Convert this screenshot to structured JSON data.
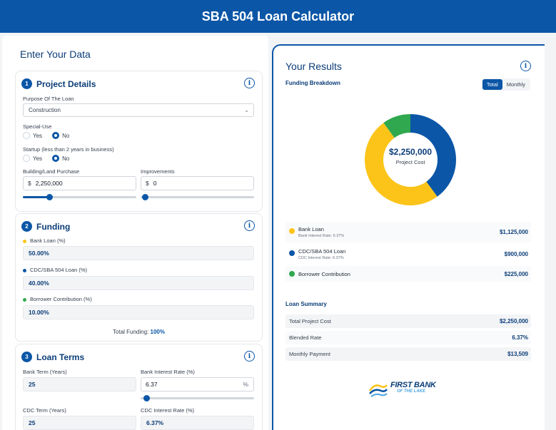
{
  "header": {
    "title": "SBA 504 Loan Calculator"
  },
  "left": {
    "title": "Enter Your Data",
    "project": {
      "number": "1",
      "title": "Project Details",
      "purpose_label": "Purpose Of The Loan",
      "purpose_value": "Construction",
      "special_use_label": "Special-Use",
      "startup_label": "Startup (less than 2 years in business)",
      "yes": "Yes",
      "no": "No",
      "building_label": "Building/Land Purchase",
      "building_prefix": "$",
      "building_value": "2,250,000",
      "building_slider_fraction": 0.24,
      "improvements_label": "Improvements",
      "improvements_prefix": "$",
      "improvements_value": "0",
      "improvements_slider_fraction": 0.0
    },
    "funding": {
      "number": "2",
      "title": "Funding",
      "bank_label": "Bank Loan (%)",
      "bank_value": "50.00%",
      "cdc_label": "CDC/SBA 504 Loan (%)",
      "cdc_value": "40.00%",
      "borrower_label": "Borrower Contribution (%)",
      "borrower_value": "10.00%",
      "total_label": "Total Funding:",
      "total_value": "100%"
    },
    "terms": {
      "number": "3",
      "title": "Loan Terms",
      "bank_term_label": "Bank Term (Years)",
      "bank_term_value": "25",
      "bank_rate_label": "Bank Interest Rate (%)",
      "bank_rate_value": "6.37",
      "bank_rate_suffix": "%",
      "bank_rate_slider_fraction": 0.02,
      "cdc_term_label": "CDC Term (Years)",
      "cdc_term_value": "25",
      "cdc_rate_label": "CDC Interest Rate (%)",
      "cdc_rate_value": "6.37%"
    }
  },
  "right": {
    "title": "Your Results",
    "breakdown_label": "Funding Breakdown",
    "toggle": {
      "total": "Total",
      "monthly": "Monthly"
    },
    "donut": {
      "amount": "$2,250,000",
      "caption": "Project Cost"
    },
    "legend": [
      {
        "name": "Bank Loan",
        "rate": "Bank Interest Rate: 6.37%",
        "value": "$1,125,000",
        "color": "#fcc419"
      },
      {
        "name": "CDC/SBA 504 Loan",
        "rate": "CDC Interest Rate: 6.37%",
        "value": "$900,000",
        "color": "#0b56a7"
      },
      {
        "name": "Borrower Contribution",
        "rate": "",
        "value": "$225,000",
        "color": "#2fa84f"
      }
    ],
    "summary": {
      "title": "Loan Summary",
      "rows": [
        {
          "label": "Total Project Cost",
          "value": "$2,250,000"
        },
        {
          "label": "Blended Rate",
          "value": "6.37%"
        },
        {
          "label": "Monthly Payment",
          "value": "$13,509"
        }
      ]
    },
    "logo": {
      "line1": "FIRST BANK",
      "line2": "OF THE LAKE"
    }
  },
  "chart_data": {
    "type": "pie",
    "categories": [
      "Bank Loan",
      "CDC/SBA 504 Loan",
      "Borrower Contribution"
    ],
    "values": [
      1125000,
      900000,
      225000
    ],
    "colors": [
      "#fcc419",
      "#0b56a7",
      "#2fa84f"
    ]
  }
}
